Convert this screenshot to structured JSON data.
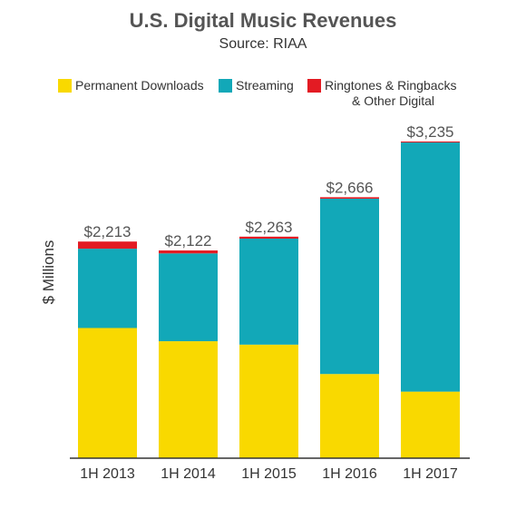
{
  "chart_data": {
    "type": "bar",
    "stacked": true,
    "title": "U.S. Digital Music Revenues",
    "subtitle": "Source: RIAA",
    "ylabel": "$ Millions",
    "xlabel": "",
    "grid": false,
    "legend_position": "top",
    "categories": [
      "1H 2013",
      "1H 2014",
      "1H 2015",
      "1H 2016",
      "1H 2017"
    ],
    "series": [
      {
        "name": "Permanent Downloads",
        "color": "#F9D900",
        "values": [
          1330,
          1195,
          1160,
          860,
          680
        ]
      },
      {
        "name": "Streaming",
        "color": "#12A8B8",
        "values": [
          810,
          897,
          1083,
          1791,
          2545
        ]
      },
      {
        "name": "Ringtones & Ringbacks & Other Digital",
        "color": "#E31B23",
        "values": [
          73,
          30,
          20,
          15,
          10
        ]
      }
    ],
    "totals": [
      2213,
      2122,
      2263,
      2666,
      3235
    ],
    "total_labels": [
      "$2,213",
      "$2,122",
      "$2,263",
      "$2,666",
      "$3,235"
    ],
    "ylim": [
      0,
      3800
    ]
  },
  "legend": {
    "downloads": "Permanent Downloads",
    "streaming": "Streaming",
    "ringtones_line1": "Ringtones & Ringbacks",
    "ringtones_line2": "& Other Digital"
  }
}
